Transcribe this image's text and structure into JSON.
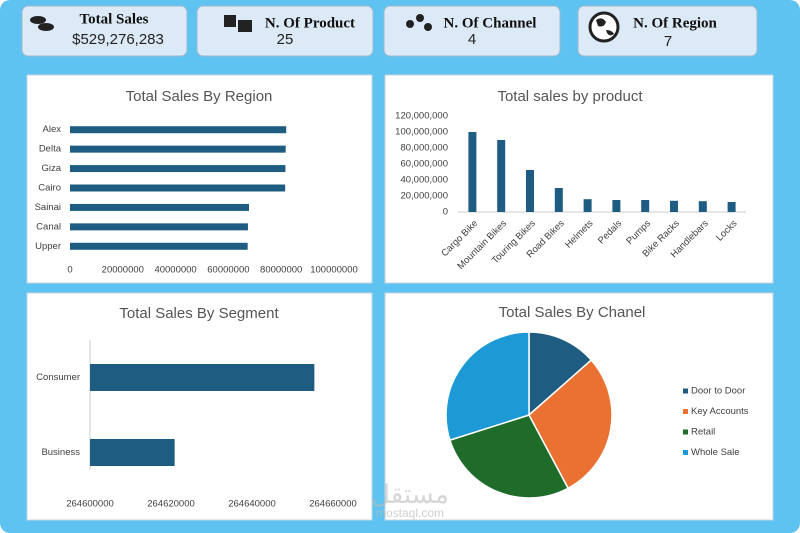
{
  "kpis": [
    {
      "label": "Total Sales",
      "value": "$529,276,283"
    },
    {
      "label": "N. Of Product",
      "value": 25
    },
    {
      "label": "N. Of Channel",
      "value": 4
    },
    {
      "label": "N. Of Region",
      "value": 7
    }
  ],
  "watermark": [
    "مستقل",
    "mostaql.com"
  ],
  "chart_data": [
    {
      "type": "bar",
      "orientation": "horizontal",
      "title": "Total Sales By Region",
      "categories": [
        "Alex",
        "Delta",
        "Giza",
        "Cairo",
        "Sainai",
        "Canal",
        "Upper"
      ],
      "values": [
        81900000,
        81700000,
        81600000,
        81500000,
        67800000,
        67400000,
        67300000
      ],
      "color": "#1f5c82",
      "xlim": [
        0,
        100000000
      ],
      "xticks": [
        0,
        20000000,
        40000000,
        60000000,
        80000000,
        100000000
      ],
      "grid": false
    },
    {
      "type": "bar",
      "orientation": "vertical",
      "title": "Total sales by product",
      "categories": [
        "Cargo Bike",
        "Mountain Bikes",
        "Touring Bikes",
        "Road Bikes",
        "Helmets",
        "Pedals",
        "Pumps",
        "Bike Racks",
        "Handlebars",
        "Locks"
      ],
      "values": [
        100000000,
        90000000,
        52500000,
        30000000,
        16000000,
        15000000,
        15000000,
        14000000,
        13500000,
        12500000
      ],
      "color": "#1f5c82",
      "ylim": [
        0,
        120000000
      ],
      "yticks": [
        {
          "value": 0,
          "label": "0"
        },
        {
          "value": 20000000,
          "label": "20,000,000"
        },
        {
          "value": 40000000,
          "label": "40,000,000"
        },
        {
          "value": 60000000,
          "label": "60,000,000"
        },
        {
          "value": 80000000,
          "label": "80,000,000"
        },
        {
          "value": 100000000,
          "label": "100,000,000"
        },
        {
          "value": 120000000,
          "label": "120,000,000"
        }
      ],
      "grid": false
    },
    {
      "type": "bar",
      "orientation": "horizontal",
      "title": "Total Sales By Segment",
      "categories": [
        "Consumer",
        "Business"
      ],
      "values": [
        264655400,
        264620900
      ],
      "color": "#1f5c82",
      "xlim": [
        264600000,
        264660000
      ],
      "xticks": [
        264600000,
        264620000,
        264640000,
        264660000
      ],
      "grid": false
    },
    {
      "type": "pie",
      "title": "Total Sales By Chanel",
      "categories": [
        "Door to Door",
        "Key Accounts",
        "Retail",
        "Whole Sale"
      ],
      "values": [
        13.5,
        28.7,
        27.9,
        29.9
      ],
      "colors": [
        "#1f5c82",
        "#ea7132",
        "#1e6b2a",
        "#1d9ad6"
      ],
      "legend": "right"
    }
  ]
}
